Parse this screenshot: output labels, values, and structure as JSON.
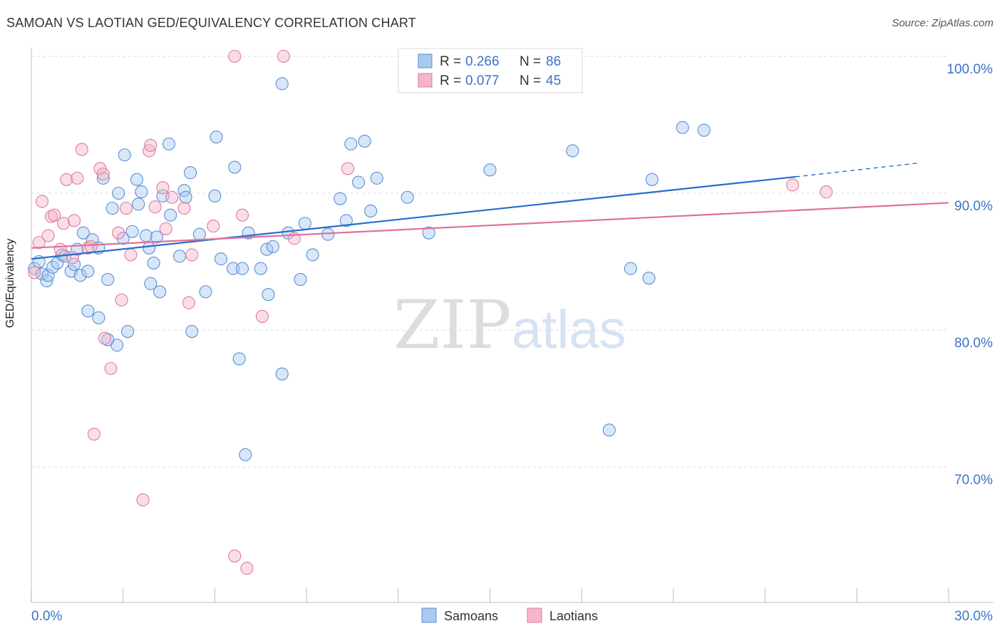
{
  "title": "SAMOAN VS LAOTIAN GED/EQUIVALENCY CORRELATION CHART",
  "source": "Source: ZipAtlas.com",
  "watermark": {
    "zip": "ZIP",
    "atlas": "atlas"
  },
  "colors": {
    "samoans_fill": "#a9c9ef",
    "samoans_stroke": "#5b8fd6",
    "samoans_line": "#2a6ccf",
    "laotians_fill": "#f5b6c9",
    "laotians_stroke": "#e07b9d",
    "laotians_line": "#e0709a",
    "axis_text": "#3a73c8",
    "grid": "#dddddd"
  },
  "legend": {
    "rows": [
      {
        "r_label": "R = ",
        "r_value": "0.266",
        "n_label": "N = ",
        "n_value": "86"
      },
      {
        "r_label": "R = ",
        "r_value": "0.077",
        "n_label": "N = ",
        "n_value": "45"
      }
    ]
  },
  "chart_data": {
    "type": "scatter",
    "title": "SAMOAN VS LAOTIAN GED/EQUIVALENCY CORRELATION CHART",
    "xlabel": "",
    "ylabel": "GED/Equivalency",
    "xlim": [
      0,
      30
    ],
    "ylim": [
      60,
      100
    ],
    "x_tick_labels": [
      "0.0%",
      "30.0%"
    ],
    "y_ticks": [
      70,
      80,
      90,
      100
    ],
    "y_tick_labels": [
      "70.0%",
      "80.0%",
      "90.0%",
      "100.0%"
    ],
    "grid": true,
    "legend_position": "bottom",
    "series": [
      {
        "name": "Samoans",
        "r": 0.266,
        "n": 86,
        "trend": {
          "x0": 0,
          "y0": 85.2,
          "x1": 25.0,
          "y1": 91.2,
          "dash_to_x": 29.0,
          "dash_to_y": 92.2
        },
        "points": [
          [
            0.1,
            84.5
          ],
          [
            0.25,
            85.0
          ],
          [
            0.35,
            84.1
          ],
          [
            0.5,
            83.6
          ],
          [
            0.55,
            84.0
          ],
          [
            0.7,
            84.6
          ],
          [
            0.85,
            84.9
          ],
          [
            1.0,
            85.5
          ],
          [
            1.1,
            85.4
          ],
          [
            1.3,
            84.3
          ],
          [
            1.4,
            84.8
          ],
          [
            1.5,
            85.9
          ],
          [
            1.6,
            84.0
          ],
          [
            1.7,
            87.1
          ],
          [
            1.85,
            84.3
          ],
          [
            2.0,
            86.6
          ],
          [
            2.2,
            86.0
          ],
          [
            1.85,
            81.4
          ],
          [
            2.2,
            80.9
          ],
          [
            2.35,
            91.1
          ],
          [
            2.5,
            83.7
          ],
          [
            2.65,
            88.9
          ],
          [
            2.8,
            78.9
          ],
          [
            2.85,
            90.0
          ],
          [
            3.0,
            86.7
          ],
          [
            3.05,
            92.8
          ],
          [
            3.15,
            79.9
          ],
          [
            3.3,
            87.2
          ],
          [
            3.45,
            91.0
          ],
          [
            3.5,
            89.2
          ],
          [
            3.6,
            90.1
          ],
          [
            3.75,
            86.9
          ],
          [
            3.85,
            86.0
          ],
          [
            3.9,
            83.4
          ],
          [
            4.0,
            84.9
          ],
          [
            4.1,
            86.8
          ],
          [
            4.2,
            82.8
          ],
          [
            4.3,
            89.8
          ],
          [
            4.5,
            93.6
          ],
          [
            4.55,
            88.4
          ],
          [
            4.85,
            85.4
          ],
          [
            5.0,
            90.2
          ],
          [
            5.05,
            89.7
          ],
          [
            5.2,
            91.5
          ],
          [
            5.25,
            79.9
          ],
          [
            5.5,
            87.0
          ],
          [
            5.7,
            82.8
          ],
          [
            6.0,
            89.8
          ],
          [
            6.05,
            94.1
          ],
          [
            6.2,
            85.2
          ],
          [
            6.6,
            84.5
          ],
          [
            6.65,
            91.9
          ],
          [
            6.8,
            77.9
          ],
          [
            7.0,
            70.9
          ],
          [
            7.1,
            87.1
          ],
          [
            7.5,
            84.5
          ],
          [
            7.7,
            85.9
          ],
          [
            7.75,
            82.6
          ],
          [
            7.9,
            86.1
          ],
          [
            8.2,
            76.8
          ],
          [
            8.2,
            98.0
          ],
          [
            8.4,
            87.1
          ],
          [
            8.8,
            83.7
          ],
          [
            8.95,
            87.8
          ],
          [
            9.2,
            85.5
          ],
          [
            9.7,
            87.0
          ],
          [
            10.1,
            89.6
          ],
          [
            10.3,
            88.0
          ],
          [
            10.45,
            93.6
          ],
          [
            10.7,
            90.8
          ],
          [
            10.9,
            93.8
          ],
          [
            11.1,
            88.7
          ],
          [
            11.3,
            91.1
          ],
          [
            12.3,
            89.7
          ],
          [
            13.0,
            87.1
          ],
          [
            14.0,
            98.1
          ],
          [
            15.0,
            91.7
          ],
          [
            17.7,
            93.1
          ],
          [
            18.9,
            72.7
          ],
          [
            19.6,
            84.5
          ],
          [
            20.2,
            83.8
          ],
          [
            20.3,
            91.0
          ],
          [
            21.3,
            94.8
          ],
          [
            22.0,
            94.6
          ],
          [
            2.5,
            79.3
          ],
          [
            6.9,
            84.5
          ]
        ]
      },
      {
        "name": "Laotians",
        "r": 0.077,
        "n": 45,
        "trend": {
          "x0": 0,
          "y0": 86.0,
          "x1": 30.0,
          "y1": 89.3
        },
        "points": [
          [
            0.1,
            84.2
          ],
          [
            0.25,
            86.4
          ],
          [
            0.35,
            89.4
          ],
          [
            0.55,
            86.9
          ],
          [
            0.65,
            88.3
          ],
          [
            0.75,
            88.4
          ],
          [
            0.95,
            85.9
          ],
          [
            1.05,
            87.8
          ],
          [
            1.15,
            91.0
          ],
          [
            1.35,
            85.3
          ],
          [
            1.4,
            88.0
          ],
          [
            1.5,
            91.1
          ],
          [
            1.65,
            93.2
          ],
          [
            1.85,
            86.0
          ],
          [
            1.95,
            86.1
          ],
          [
            2.05,
            72.4
          ],
          [
            2.25,
            91.8
          ],
          [
            2.35,
            91.4
          ],
          [
            2.4,
            79.4
          ],
          [
            2.6,
            77.2
          ],
          [
            2.85,
            87.1
          ],
          [
            2.95,
            82.2
          ],
          [
            3.1,
            88.9
          ],
          [
            3.25,
            85.5
          ],
          [
            3.65,
            67.6
          ],
          [
            3.85,
            93.1
          ],
          [
            3.9,
            93.5
          ],
          [
            4.05,
            89.0
          ],
          [
            4.3,
            90.4
          ],
          [
            4.4,
            87.4
          ],
          [
            4.6,
            89.7
          ],
          [
            5.0,
            88.9
          ],
          [
            5.15,
            82.0
          ],
          [
            5.25,
            85.5
          ],
          [
            5.95,
            87.6
          ],
          [
            6.65,
            63.5
          ],
          [
            6.65,
            100.0
          ],
          [
            6.9,
            88.4
          ],
          [
            7.05,
            62.6
          ],
          [
            7.55,
            81.0
          ],
          [
            8.25,
            100.0
          ],
          [
            8.6,
            86.7
          ],
          [
            10.35,
            91.8
          ],
          [
            24.9,
            90.6
          ],
          [
            26.0,
            90.1
          ]
        ]
      }
    ]
  },
  "bottom_legend": {
    "samoans": "Samoans",
    "laotians": "Laotians"
  }
}
